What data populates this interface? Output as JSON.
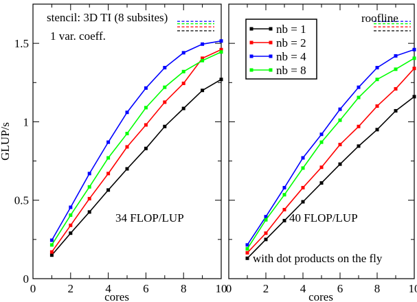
{
  "figure": {
    "ylabel": "GLUP/s",
    "xlabel": "cores"
  },
  "chart_data": [
    {
      "type": "line",
      "xlabel": "cores",
      "ylabel": "GLUP/s",
      "xlim": [
        0,
        10
      ],
      "ylim": [
        0,
        1.75
      ],
      "xticks": [
        0,
        2,
        4,
        6,
        8,
        10
      ],
      "yticks": [
        0,
        0.5,
        1,
        1.5
      ],
      "ytick_labels": [
        "0",
        "0.5",
        "1",
        "1.5"
      ],
      "grid": false,
      "annotations": [
        "stencil: 3D TI (8 subsites)",
        "1 var. coeff.",
        "34 FLOP/LUP"
      ],
      "roofline_levels": [
        {
          "series": "nb = 1",
          "y": 1.58
        },
        {
          "series": "nb = 2",
          "y": 1.605
        },
        {
          "series": "nb = 4",
          "y": 1.64
        },
        {
          "series": "nb = 8",
          "y": 1.625
        }
      ],
      "x": [
        1,
        2,
        3,
        4,
        5,
        6,
        7,
        8,
        9,
        10
      ],
      "series": [
        {
          "name": "nb = 1",
          "color": "#000000",
          "values": [
            0.15,
            0.29,
            0.425,
            0.565,
            0.7,
            0.83,
            0.97,
            1.085,
            1.2,
            1.27
          ]
        },
        {
          "name": "nb = 2",
          "color": "#ff0000",
          "values": [
            0.17,
            0.34,
            0.51,
            0.67,
            0.84,
            0.98,
            1.125,
            1.245,
            1.405,
            1.46
          ]
        },
        {
          "name": "nb = 4",
          "color": "#0000ff",
          "values": [
            0.245,
            0.455,
            0.67,
            0.87,
            1.06,
            1.215,
            1.345,
            1.44,
            1.495,
            1.515
          ]
        },
        {
          "name": "nb = 8",
          "color": "#00ff00",
          "values": [
            0.215,
            0.405,
            0.585,
            0.77,
            0.925,
            1.09,
            1.22,
            1.32,
            1.39,
            1.445
          ]
        }
      ]
    },
    {
      "type": "line",
      "xlabel": "cores",
      "ylabel": "",
      "xlim": [
        0,
        10
      ],
      "ylim": [
        0,
        1.75
      ],
      "xticks": [
        0,
        2,
        4,
        6,
        8,
        10
      ],
      "yticks": [
        0,
        0.5,
        1,
        1.5
      ],
      "grid": false,
      "legend": "top-left",
      "annotations": [
        "roofline",
        "40 FLOP/LUP",
        "with dot products on the fly"
      ],
      "roofline_levels": [
        {
          "series": "nb = 1",
          "y": 1.58
        },
        {
          "series": "nb = 2",
          "y": 1.605
        },
        {
          "series": "nb = 4",
          "y": 1.64
        },
        {
          "series": "nb = 8",
          "y": 1.625
        }
      ],
      "x": [
        1,
        2,
        3,
        4,
        5,
        6,
        7,
        8,
        9,
        10
      ],
      "series": [
        {
          "name": "nb = 1",
          "color": "#000000",
          "values": [
            0.13,
            0.25,
            0.37,
            0.49,
            0.61,
            0.73,
            0.845,
            0.95,
            1.07,
            1.16
          ]
        },
        {
          "name": "nb = 2",
          "color": "#ff0000",
          "values": [
            0.165,
            0.29,
            0.44,
            0.58,
            0.71,
            0.855,
            0.97,
            1.1,
            1.21,
            1.34
          ]
        },
        {
          "name": "nb = 4",
          "color": "#0000ff",
          "values": [
            0.215,
            0.395,
            0.58,
            0.77,
            0.92,
            1.08,
            1.22,
            1.345,
            1.42,
            1.46
          ]
        },
        {
          "name": "nb = 8",
          "color": "#00ff00",
          "values": [
            0.19,
            0.375,
            0.535,
            0.705,
            0.87,
            1.01,
            1.155,
            1.27,
            1.335,
            1.405
          ]
        }
      ]
    }
  ]
}
